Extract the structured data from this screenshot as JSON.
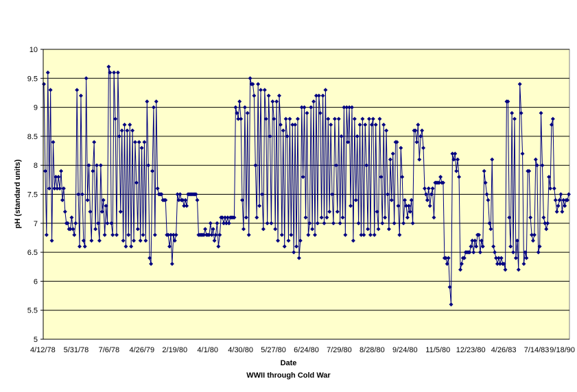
{
  "chart_data": {
    "type": "line",
    "xlabel": "Date",
    "subtitle": "WWII through Cold War",
    "ylabel": "pH (standard units)",
    "ylim": [
      5,
      10
    ],
    "yticks": [
      "5",
      "5.5",
      "6",
      "6.5",
      "7",
      "7.5",
      "8",
      "8.5",
      "9",
      "9.5",
      "10"
    ],
    "xticks": [
      "4/12/78",
      "5/31/78",
      "7/6/78",
      "4/26/79",
      "2/19/80",
      "4/1/80",
      "4/30/80",
      "5/27/80",
      "6/24/80",
      "7/29/80",
      "8/28/80",
      "9/24/80",
      "11/5/80",
      "12/23/80",
      "4/26/83",
      "7/14/83",
      "9/18/90"
    ],
    "grid": "horizontal",
    "plot_background": "#FFFFCC",
    "series_color": "#000080",
    "marker": "diamond",
    "series": [
      {
        "values": [
          9.4,
          7.9,
          6.8,
          9.6,
          7.6,
          9.3,
          6.7,
          8.4,
          7.6,
          7.8,
          7.6,
          7.8,
          7.6,
          7.9,
          7.4,
          7.6,
          7.2,
          7.0,
          7.0,
          6.9,
          6.9,
          7.1,
          6.9,
          6.8,
          7.0,
          9.3,
          7.5,
          6.6,
          9.2,
          7.5,
          6.7,
          6.6,
          9.5,
          7.4,
          8.0,
          7.2,
          6.7,
          7.9,
          8.4,
          6.9,
          8.0,
          7.0,
          6.7,
          8.0,
          7.2,
          7.4,
          6.8,
          7.3,
          7.0,
          9.7,
          9.6,
          7.0,
          6.8,
          9.6,
          8.8,
          6.8,
          9.6,
          8.5,
          7.2,
          8.6,
          6.7,
          8.7,
          6.6,
          8.6,
          6.8,
          8.7,
          6.6,
          8.6,
          6.7,
          8.4,
          7.7,
          6.9,
          8.4,
          6.7,
          8.3,
          6.8,
          8.4,
          6.7,
          9.1,
          8.0,
          6.4,
          6.3,
          7.9,
          9.0,
          6.8,
          9.1,
          7.6,
          7.5,
          7.5,
          7.5,
          7.4,
          7.4,
          7.4,
          6.8,
          6.8,
          6.6,
          6.8,
          6.3,
          6.8,
          6.7,
          6.8,
          7.5,
          7.4,
          7.5,
          7.4,
          7.4,
          7.3,
          7.4,
          7.3,
          7.5,
          7.5,
          7.5,
          7.5,
          7.5,
          7.5,
          7.5,
          7.4,
          6.8,
          6.8,
          6.8,
          6.8,
          6.8,
          6.9,
          6.8,
          6.8,
          6.8,
          7.0,
          6.8,
          6.9,
          6.7,
          6.8,
          7.0,
          6.6,
          6.8,
          7.1,
          7.1,
          7.0,
          7.1,
          7.0,
          7.1,
          7.0,
          7.1,
          7.1,
          7.1,
          7.1,
          9.0,
          8.9,
          8.8,
          9.1,
          8.8,
          7.4,
          6.9,
          9.0,
          7.1,
          8.9,
          6.8,
          9.5,
          9.4,
          9.4,
          9.2,
          8.0,
          7.1,
          9.4,
          7.3,
          9.3,
          7.5,
          6.9,
          9.3,
          8.8,
          7.0,
          9.2,
          8.5,
          7.0,
          9.1,
          8.8,
          6.9,
          9.1,
          6.7,
          9.2,
          8.7,
          6.8,
          8.6,
          6.6,
          8.8,
          8.5,
          6.7,
          8.8,
          6.8,
          8.7,
          6.5,
          8.7,
          6.6,
          8.8,
          6.4,
          6.7,
          9.0,
          7.8,
          9.0,
          7.1,
          8.9,
          6.8,
          7.0,
          9.0,
          6.9,
          9.1,
          6.8,
          9.2,
          7.0,
          9.2,
          8.9,
          7.1,
          9.2,
          7.0,
          9.3,
          7.1,
          8.8,
          7.2,
          8.7,
          7.5,
          7.0,
          8.8,
          8.0,
          7.2,
          8.8,
          7.0,
          8.5,
          7.1,
          9.0,
          6.8,
          9.0,
          8.4,
          9.0,
          7.3,
          9.0,
          6.7,
          8.8,
          7.4,
          8.5,
          7.0,
          8.7,
          6.8,
          8.8,
          6.8,
          8.7,
          8.0,
          6.9,
          8.8,
          6.8,
          8.7,
          8.8,
          6.8,
          8.7,
          7.2,
          6.9,
          8.8,
          7.8,
          7.0,
          8.7,
          7.1,
          8.6,
          7.5,
          6.9,
          8.1,
          7.4,
          8.2,
          7.0,
          8.4,
          8.4,
          7.3,
          6.8,
          8.3,
          7.8,
          7.0,
          7.4,
          7.3,
          7.1,
          7.3,
          7.2,
          7.4,
          7.0,
          8.6,
          8.6,
          8.4,
          8.7,
          8.1,
          8.5,
          8.6,
          8.3,
          7.6,
          7.5,
          7.4,
          7.6,
          7.3,
          7.5,
          7.6,
          7.1,
          7.7,
          7.7,
          7.7,
          7.7,
          7.8,
          7.7,
          7.7,
          6.4,
          6.4,
          6.3,
          6.4,
          5.9,
          5.6,
          8.2,
          8.1,
          8.2,
          7.9,
          8.1,
          7.8,
          6.2,
          6.3,
          6.4,
          6.4,
          6.5,
          6.5,
          6.5,
          6.5,
          6.6,
          6.7,
          6.5,
          6.7,
          6.6,
          6.8,
          6.8,
          6.5,
          6.7,
          6.6,
          7.9,
          7.7,
          7.5,
          7.4,
          7.0,
          6.9,
          8.1,
          6.6,
          6.5,
          6.4,
          6.3,
          6.4,
          6.3,
          6.4,
          6.3,
          6.3,
          6.2,
          9.1,
          9.1,
          7.1,
          6.6,
          8.9,
          6.5,
          8.8,
          6.4,
          6.7,
          6.2,
          9.4,
          8.9,
          8.2,
          6.3,
          6.5,
          6.4,
          7.9,
          7.9,
          7.1,
          6.8,
          6.7,
          6.8,
          8.1,
          8.0,
          6.5,
          6.6,
          8.9,
          8.0,
          7.1,
          7.0,
          6.9,
          7.0,
          7.8,
          7.6,
          8.7,
          8.8,
          7.6,
          7.4,
          7.2,
          7.3,
          7.4,
          7.5,
          7.2,
          7.4,
          7.3,
          7.4,
          7.4,
          7.5
        ]
      }
    ]
  }
}
